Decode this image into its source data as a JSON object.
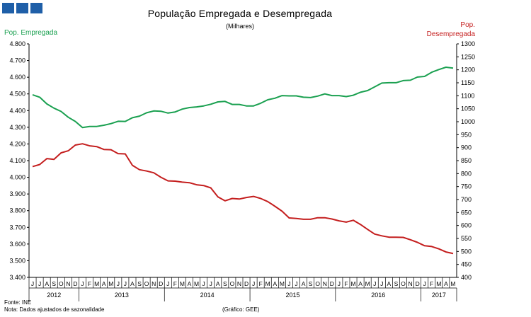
{
  "logo": {
    "icon": "ine-logo-squares"
  },
  "chart_data": {
    "type": "line",
    "title": "População Empregada e Desempregada",
    "subtitle": "(Milhares)",
    "ylabel_left": "Pop. Empregada",
    "ylabel_right": [
      "Pop.",
      "Desempregada"
    ],
    "y_left": {
      "min": 3400,
      "max": 4800,
      "step": 100
    },
    "y_right": {
      "min": 400,
      "max": 1300,
      "step": 50
    },
    "y_left_ticks": [
      "3.400",
      "3.500",
      "3.600",
      "3.700",
      "3.800",
      "3.900",
      "4.000",
      "4.100",
      "4.200",
      "4.300",
      "4.400",
      "4.500",
      "4.600",
      "4.700",
      "4.800"
    ],
    "y_right_ticks": [
      "400",
      "450",
      "500",
      "550",
      "600",
      "650",
      "700",
      "750",
      "800",
      "850",
      "900",
      "950",
      "1000",
      "1050",
      "1100",
      "1150",
      "1200",
      "1250",
      "1300"
    ],
    "months": [
      "J",
      "J",
      "A",
      "S",
      "O",
      "N",
      "D",
      "J",
      "F",
      "M",
      "A",
      "M",
      "J",
      "J",
      "A",
      "S",
      "O",
      "N",
      "D",
      "J",
      "F",
      "M",
      "A",
      "M",
      "J",
      "J",
      "A",
      "S",
      "O",
      "N",
      "D",
      "J",
      "F",
      "M",
      "A",
      "M",
      "J",
      "J",
      "A",
      "S",
      "O",
      "N",
      "D",
      "J",
      "F",
      "M",
      "A",
      "M",
      "J",
      "J",
      "A",
      "S",
      "O",
      "N",
      "D",
      "J",
      "F",
      "M",
      "A",
      "M"
    ],
    "years": [
      {
        "label": "2012",
        "start": 0,
        "end": 7
      },
      {
        "label": "2013",
        "start": 7,
        "end": 19
      },
      {
        "label": "2014",
        "start": 19,
        "end": 31
      },
      {
        "label": "2015",
        "start": 31,
        "end": 43
      },
      {
        "label": "2016",
        "start": 43,
        "end": 55
      },
      {
        "label": "2017",
        "start": 55,
        "end": 60
      }
    ],
    "series": [
      {
        "name": "Pop. Empregada",
        "axis": "left",
        "color": "#1aa050",
        "values": [
          4495,
          4480,
          4440,
          4415,
          4395,
          4360,
          4335,
          4298,
          4305,
          4305,
          4312,
          4322,
          4336,
          4335,
          4357,
          4367,
          4387,
          4398,
          4396,
          4385,
          4392,
          4409,
          4418,
          4422,
          4428,
          4438,
          4452,
          4455,
          4437,
          4437,
          4428,
          4428,
          4444,
          4465,
          4474,
          4490,
          4488,
          4488,
          4480,
          4478,
          4487,
          4500,
          4490,
          4490,
          4484,
          4492,
          4510,
          4520,
          4542,
          4565,
          4567,
          4567,
          4580,
          4582,
          4601,
          4605,
          4630,
          4646,
          4660,
          4655
        ]
      },
      {
        "name": "Pop. Desempregada",
        "axis": "right",
        "color": "#c41e1e",
        "values": [
          827,
          835,
          858,
          855,
          880,
          888,
          910,
          915,
          907,
          904,
          893,
          892,
          877,
          876,
          832,
          815,
          810,
          803,
          786,
          772,
          771,
          767,
          765,
          757,
          754,
          745,
          710,
          695,
          704,
          702,
          708,
          712,
          704,
          692,
          674,
          655,
          629,
          627,
          624,
          624,
          630,
          630,
          625,
          618,
          613,
          620,
          604,
          585,
          567,
          560,
          555,
          555,
          554,
          545,
          535,
          522,
          519,
          510,
          498,
          492
        ]
      }
    ]
  },
  "footer": {
    "source": "Fonte: INE",
    "note": "Nota: Dados ajustados de sazonalidade",
    "credit": "(Gráfico: GEE)"
  }
}
